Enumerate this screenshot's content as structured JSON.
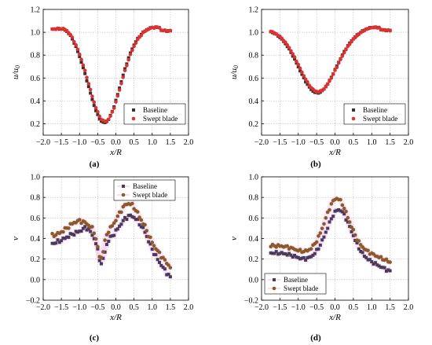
{
  "chart_data": [
    {
      "type": "scatter",
      "caption_letter": "(a)",
      "ylabel": "u/u0",
      "xlabel": "x/R",
      "xlim": [
        -2.0,
        2.0
      ],
      "ylim": [
        0.1,
        1.2
      ],
      "xticks": [
        "−2.0",
        "−1.5",
        "−1.0",
        "−0.5",
        "0.0",
        "0.5",
        "1.0",
        "1.5",
        "2.0"
      ],
      "yticks": [
        "0.2",
        "0.4",
        "0.6",
        "0.8",
        "1.0",
        "1.2"
      ],
      "grid": true,
      "legend_position": "lower-right",
      "series": [
        {
          "name": "Baseline",
          "marker": "square",
          "color": "#333333",
          "x": [],
          "y": []
        },
        {
          "name": "Swept blade",
          "marker": "circle",
          "color": "#e03030",
          "x": [],
          "y": []
        }
      ]
    },
    {
      "type": "scatter",
      "caption_letter": "(b)",
      "ylabel": "u/u0",
      "xlabel": "x/R",
      "xlim": [
        -2.0,
        2.0
      ],
      "ylim": [
        0.1,
        1.2
      ],
      "xticks": [
        "−2.0",
        "−1.5",
        "−1.0",
        "−0.5",
        "0.0",
        "0.5",
        "1.0",
        "1.5",
        "2.0"
      ],
      "yticks": [
        "0.2",
        "0.4",
        "0.6",
        "0.8",
        "1.0",
        "1.2"
      ],
      "grid": true,
      "legend_position": "lower-right",
      "series": [
        {
          "name": "Baseline",
          "marker": "square",
          "color": "#333333",
          "x": [],
          "y": []
        },
        {
          "name": "Swept blade",
          "marker": "circle",
          "color": "#e03030",
          "x": [],
          "y": []
        }
      ]
    },
    {
      "type": "scatter",
      "caption_letter": "(c)",
      "ylabel": "v",
      "xlabel": "x/R",
      "xlim": [
        -2.0,
        2.0
      ],
      "ylim": [
        -0.2,
        1.0
      ],
      "xticks": [
        "−2.0",
        "−1.5",
        "−1.0",
        "−0.5",
        "0.0",
        "0.5",
        "1.0",
        "1.5",
        "2.0"
      ],
      "yticks": [
        "−0.2",
        "0.0",
        "0.2",
        "0.4",
        "0.6",
        "0.8",
        "1.0"
      ],
      "grid": true,
      "legend_position": "top-right",
      "series": [
        {
          "name": "Baseline",
          "marker": "square",
          "color": "#4a3a5a",
          "x": [],
          "y": []
        },
        {
          "name": "Swept blade",
          "marker": "circle",
          "color": "#8b5a2b",
          "x": [],
          "y": []
        }
      ]
    },
    {
      "type": "scatter",
      "caption_letter": "(d)",
      "ylabel": "v",
      "xlabel": "x/R",
      "xlim": [
        -2.0,
        2.0
      ],
      "ylim": [
        -0.2,
        1.0
      ],
      "xticks": [
        "−2.0",
        "−1.5",
        "−1.0",
        "−0.5",
        "0.0",
        "0.5",
        "1.0",
        "1.5",
        "2.0"
      ],
      "yticks": [
        "−0.2",
        "0.0",
        "0.2",
        "0.4",
        "0.6",
        "0.8",
        "1.0"
      ],
      "grid": true,
      "legend_position": "lower-left",
      "series": [
        {
          "name": "Baseline",
          "marker": "square",
          "color": "#4a3a5a",
          "x": [],
          "y": []
        },
        {
          "name": "Swept blade",
          "marker": "circle",
          "color": "#8b5a2b",
          "x": [],
          "y": []
        }
      ]
    }
  ]
}
